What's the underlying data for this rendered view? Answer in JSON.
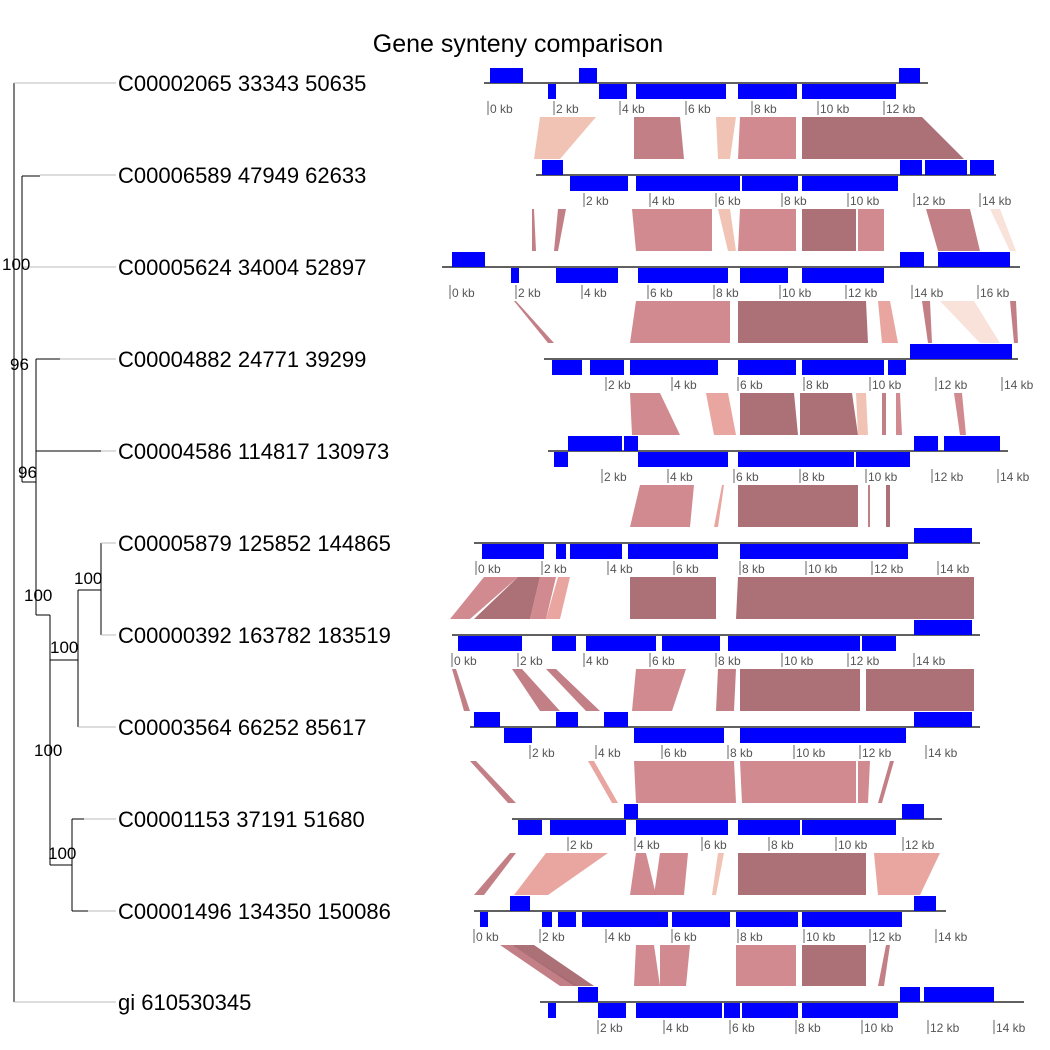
{
  "title": "Gene synteny comparison",
  "colors": {
    "gene": "#0000ff",
    "axis": "#000000",
    "tick_text": "#555555",
    "tree_line": "#000000",
    "tree_leaf_line": "#bbbbbb",
    "link_palette": [
      "#c07880",
      "#cf8489",
      "#e8a09a",
      "#f0c0b0",
      "#f8e0d8",
      "#a86870"
    ]
  },
  "tree": {
    "leaves": [
      {
        "label": "C00002065 33343 50635"
      },
      {
        "label": "C00006589 47949 62633"
      },
      {
        "label": "C00005624 34004 52897"
      },
      {
        "label": "C00004882 24771 39299"
      },
      {
        "label": "C00004586 114817 130973"
      },
      {
        "label": "C00005879 125852 144865"
      },
      {
        "label": "C00000392 163782 183519"
      },
      {
        "label": "C00003564 66252 85617"
      },
      {
        "label": "C00001153 37191 51680"
      },
      {
        "label": "C00001496 134350 150086"
      },
      {
        "label": "gi 610530345"
      }
    ],
    "support_values": [
      "100",
      "96",
      "96",
      "100",
      "100",
      "100",
      "100",
      "100"
    ]
  },
  "tracks": [
    {
      "ticks": [
        "0 kb",
        "2 kb",
        "4 kb",
        "6 kb",
        "8 kb",
        "10 kb",
        "12 kb"
      ]
    },
    {
      "ticks": [
        "2 kb",
        "4 kb",
        "6 kb",
        "8 kb",
        "10 kb",
        "12 kb",
        "14 kb"
      ]
    },
    {
      "ticks": [
        "0 kb",
        "2 kb",
        "4 kb",
        "6 kb",
        "8 kb",
        "10 kb",
        "12 kb",
        "14 kb",
        "16 kb"
      ]
    },
    {
      "ticks": [
        "2 kb",
        "4 kb",
        "6 kb",
        "8 kb",
        "10 kb",
        "12 kb",
        "14 kb"
      ]
    },
    {
      "ticks": [
        "2 kb",
        "4 kb",
        "6 kb",
        "8 kb",
        "10 kb",
        "12 kb",
        "14 kb"
      ]
    },
    {
      "ticks": [
        "0 kb",
        "2 kb",
        "4 kb",
        "6 kb",
        "8 kb",
        "10 kb",
        "12 kb",
        "14 kb"
      ]
    },
    {
      "ticks": [
        "0 kb",
        "2 kb",
        "4 kb",
        "6 kb",
        "8 kb",
        "10 kb",
        "12 kb",
        "14 kb"
      ]
    },
    {
      "ticks": [
        "2 kb",
        "4 kb",
        "6 kb",
        "8 kb",
        "10 kb",
        "12 kb",
        "14 kb"
      ]
    },
    {
      "ticks": [
        "2 kb",
        "4 kb",
        "6 kb",
        "8 kb",
        "10 kb",
        "12 kb"
      ]
    },
    {
      "ticks": [
        "0 kb",
        "2 kb",
        "4 kb",
        "6 kb",
        "8 kb",
        "10 kb",
        "12 kb",
        "14 kb"
      ]
    },
    {
      "ticks": [
        "2 kb",
        "4 kb",
        "6 kb",
        "8 kb",
        "10 kb",
        "12 kb",
        "14 kb"
      ]
    }
  ]
}
